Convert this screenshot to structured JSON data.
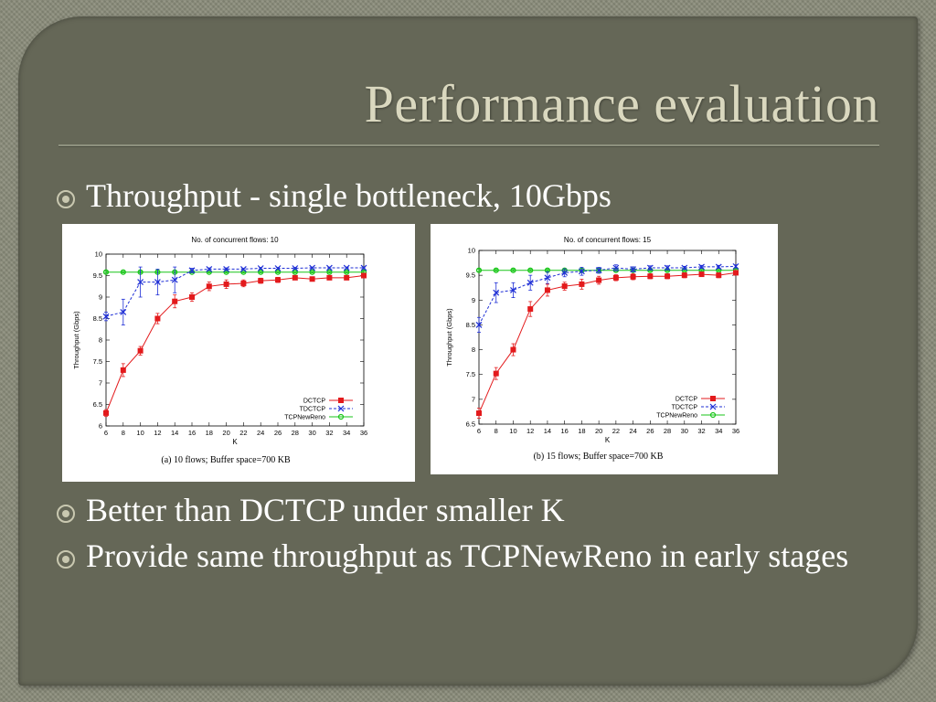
{
  "slide": {
    "title": "Performance evaluation",
    "bullets": [
      "Throughput - single bottleneck, 10Gbps",
      "Better than DCTCP under smaller K",
      "Provide same throughput as TCPNewReno in early stages"
    ]
  },
  "colors": {
    "background": "#656757",
    "title": "#dad8bf",
    "bullet_text": "#ffffff",
    "DCTCP": "#e31a1c",
    "TDCTCP": "#1f2fd6",
    "TCPNewReno": "#19c619"
  },
  "chart_data": [
    {
      "type": "line",
      "title": "No. of concurrent flows: 10",
      "caption": "(a) 10 flows; Buffer space=700 KB",
      "xlabel": "K",
      "ylabel": "Throughput (Gbps)",
      "xlim": [
        6,
        36
      ],
      "ylim": [
        6,
        10
      ],
      "x": [
        6,
        8,
        10,
        12,
        14,
        16,
        18,
        20,
        22,
        24,
        26,
        28,
        30,
        32,
        34,
        36
      ],
      "xticks": [
        "6",
        "8",
        "10",
        "12",
        "14",
        "16",
        "18",
        "20",
        "22",
        "24",
        "26",
        "28",
        "30",
        "32",
        "34",
        "36"
      ],
      "yticks": [
        "6",
        "6.5",
        "7",
        "7.5",
        "8",
        "8.5",
        "9",
        "9.5",
        "10"
      ],
      "legend_position": "bottom-right",
      "grid": false,
      "series": [
        {
          "name": "DCTCP",
          "style": "solid",
          "marker": "square",
          "values": [
            6.3,
            7.3,
            7.75,
            8.5,
            8.9,
            9.0,
            9.25,
            9.3,
            9.32,
            9.38,
            9.4,
            9.45,
            9.42,
            9.45,
            9.45,
            9.5
          ],
          "errors": [
            0.08,
            0.15,
            0.1,
            0.12,
            0.15,
            0.1,
            0.1,
            0.1,
            0.08,
            0.06,
            0.06,
            0.04,
            0.05,
            0.04,
            0.04,
            0.04
          ]
        },
        {
          "name": "TDCTCP",
          "style": "dashed",
          "marker": "cross",
          "values": [
            8.55,
            8.65,
            9.35,
            9.35,
            9.4,
            9.62,
            9.65,
            9.65,
            9.65,
            9.67,
            9.67,
            9.67,
            9.68,
            9.68,
            9.68,
            9.68
          ],
          "errors": [
            0.1,
            0.3,
            0.35,
            0.3,
            0.3,
            0.05,
            0.03,
            0.03,
            0.02,
            0.02,
            0.02,
            0.02,
            0.02,
            0.02,
            0.02,
            0.02
          ]
        },
        {
          "name": "TCPNewReno",
          "style": "solid",
          "marker": "circle",
          "values": [
            9.58,
            9.58,
            9.58,
            9.58,
            9.58,
            9.58,
            9.58,
            9.58,
            9.58,
            9.58,
            9.58,
            9.58,
            9.58,
            9.58,
            9.58,
            9.58
          ],
          "errors": [
            0.02,
            0.02,
            0.02,
            0.02,
            0.02,
            0.02,
            0.02,
            0.02,
            0.02,
            0.02,
            0.02,
            0.02,
            0.02,
            0.02,
            0.02,
            0.02
          ]
        }
      ]
    },
    {
      "type": "line",
      "title": "No. of concurrent flows: 15",
      "caption": "(b) 15 flows; Buffer space=700 KB",
      "xlabel": "K",
      "ylabel": "Throughput (Gbps)",
      "xlim": [
        6,
        36
      ],
      "ylim": [
        6.5,
        10
      ],
      "x": [
        6,
        8,
        10,
        12,
        14,
        16,
        18,
        20,
        22,
        24,
        26,
        28,
        30,
        32,
        34,
        36
      ],
      "xticks": [
        "6",
        "8",
        "10",
        "12",
        "14",
        "16",
        "18",
        "20",
        "22",
        "24",
        "26",
        "28",
        "30",
        "32",
        "34",
        "36"
      ],
      "yticks": [
        "6.5",
        "7",
        "7.5",
        "8",
        "8.5",
        "9",
        "9.5",
        "10"
      ],
      "legend_position": "bottom-right",
      "grid": false,
      "series": [
        {
          "name": "DCTCP",
          "style": "solid",
          "marker": "square",
          "values": [
            6.72,
            7.52,
            8.0,
            8.82,
            9.2,
            9.28,
            9.32,
            9.4,
            9.45,
            9.47,
            9.48,
            9.48,
            9.5,
            9.52,
            9.5,
            9.55
          ],
          "errors": [
            0.1,
            0.12,
            0.12,
            0.15,
            0.12,
            0.08,
            0.1,
            0.08,
            0.06,
            0.06,
            0.05,
            0.05,
            0.05,
            0.04,
            0.05,
            0.04
          ]
        },
        {
          "name": "TDCTCP",
          "style": "dashed",
          "marker": "cross",
          "values": [
            8.5,
            9.15,
            9.2,
            9.35,
            9.45,
            9.55,
            9.58,
            9.6,
            9.65,
            9.62,
            9.65,
            9.65,
            9.65,
            9.67,
            9.67,
            9.68
          ],
          "errors": [
            0.15,
            0.2,
            0.15,
            0.15,
            0.12,
            0.08,
            0.08,
            0.06,
            0.06,
            0.05,
            0.04,
            0.04,
            0.03,
            0.03,
            0.03,
            0.03
          ]
        },
        {
          "name": "TCPNewReno",
          "style": "solid",
          "marker": "circle",
          "values": [
            9.6,
            9.6,
            9.6,
            9.6,
            9.6,
            9.6,
            9.6,
            9.6,
            9.6,
            9.6,
            9.6,
            9.6,
            9.6,
            9.6,
            9.6,
            9.6
          ],
          "errors": [
            0.02,
            0.02,
            0.02,
            0.02,
            0.02,
            0.02,
            0.02,
            0.02,
            0.02,
            0.02,
            0.02,
            0.02,
            0.02,
            0.02,
            0.02,
            0.02
          ]
        }
      ]
    }
  ]
}
